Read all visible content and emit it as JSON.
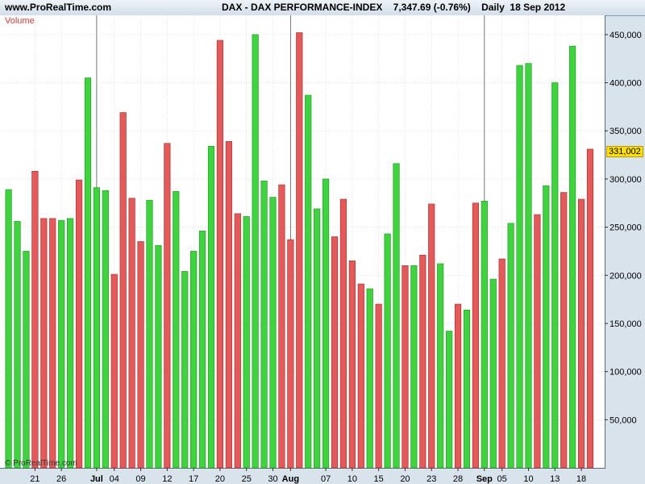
{
  "header": {
    "site": "www.ProRealTime.com",
    "title": "DAX - DAX PERFORMANCE-INDEX    7,347.69 (-0.76%)    Daily  18 Sep 2012"
  },
  "indicator_label": "Volume",
  "copyright": "© ProRealTime.com",
  "last_value_label": "331,002",
  "colors": {
    "up": "#3fd43f",
    "down": "#e45a5a",
    "up_edge": "#2a9a2a",
    "down_edge": "#a83232",
    "grid": "#c8d0da",
    "month_line": "#555555"
  },
  "chart_data": {
    "type": "bar",
    "title": "DAX - DAX PERFORMANCE-INDEX",
    "ylabel": "Volume",
    "ylim": [
      0,
      470000
    ],
    "yticks": [
      50000,
      100000,
      150000,
      200000,
      250000,
      300000,
      350000,
      400000,
      450000
    ],
    "ytick_labels": [
      "50,000",
      "100,000",
      "150,000",
      "200,000",
      "250,000",
      "300,000",
      "350,000",
      "400,000",
      "450,000"
    ],
    "grid": true,
    "bars": [
      {
        "value": 289000,
        "dir": "up"
      },
      {
        "value": 256000,
        "dir": "up"
      },
      {
        "value": 225000,
        "dir": "up"
      },
      {
        "value": 308000,
        "dir": "down"
      },
      {
        "value": 259000,
        "dir": "down"
      },
      {
        "value": 259000,
        "dir": "down"
      },
      {
        "value": 257000,
        "dir": "up"
      },
      {
        "value": 259000,
        "dir": "up"
      },
      {
        "value": 299000,
        "dir": "down"
      },
      {
        "value": 405000,
        "dir": "up"
      },
      {
        "value": 291000,
        "dir": "up"
      },
      {
        "value": 288000,
        "dir": "up"
      },
      {
        "value": 201000,
        "dir": "down"
      },
      {
        "value": 369000,
        "dir": "down"
      },
      {
        "value": 280000,
        "dir": "down"
      },
      {
        "value": 235000,
        "dir": "down"
      },
      {
        "value": 278000,
        "dir": "up"
      },
      {
        "value": 231000,
        "dir": "up"
      },
      {
        "value": 337000,
        "dir": "down"
      },
      {
        "value": 287000,
        "dir": "up"
      },
      {
        "value": 204000,
        "dir": "up"
      },
      {
        "value": 225000,
        "dir": "up"
      },
      {
        "value": 246000,
        "dir": "up"
      },
      {
        "value": 334000,
        "dir": "up"
      },
      {
        "value": 444000,
        "dir": "down"
      },
      {
        "value": 339000,
        "dir": "down"
      },
      {
        "value": 264000,
        "dir": "down"
      },
      {
        "value": 261000,
        "dir": "up"
      },
      {
        "value": 450000,
        "dir": "up"
      },
      {
        "value": 298000,
        "dir": "up"
      },
      {
        "value": 281000,
        "dir": "up"
      },
      {
        "value": 294000,
        "dir": "down"
      },
      {
        "value": 237000,
        "dir": "down"
      },
      {
        "value": 452000,
        "dir": "down"
      },
      {
        "value": 387000,
        "dir": "up"
      },
      {
        "value": 269000,
        "dir": "up"
      },
      {
        "value": 300000,
        "dir": "up"
      },
      {
        "value": 240000,
        "dir": "down"
      },
      {
        "value": 279000,
        "dir": "down"
      },
      {
        "value": 215000,
        "dir": "down"
      },
      {
        "value": 191000,
        "dir": "down"
      },
      {
        "value": 186000,
        "dir": "up"
      },
      {
        "value": 170000,
        "dir": "down"
      },
      {
        "value": 243000,
        "dir": "up"
      },
      {
        "value": 316000,
        "dir": "up"
      },
      {
        "value": 210000,
        "dir": "down"
      },
      {
        "value": 210000,
        "dir": "up"
      },
      {
        "value": 221000,
        "dir": "down"
      },
      {
        "value": 274000,
        "dir": "down"
      },
      {
        "value": 212000,
        "dir": "up"
      },
      {
        "value": 142000,
        "dir": "up"
      },
      {
        "value": 170000,
        "dir": "down"
      },
      {
        "value": 164000,
        "dir": "up"
      },
      {
        "value": 275000,
        "dir": "down"
      },
      {
        "value": 277000,
        "dir": "up"
      },
      {
        "value": 196000,
        "dir": "up"
      },
      {
        "value": 217000,
        "dir": "down"
      },
      {
        "value": 254000,
        "dir": "up"
      },
      {
        "value": 418000,
        "dir": "up"
      },
      {
        "value": 420000,
        "dir": "up"
      },
      {
        "value": 263000,
        "dir": "down"
      },
      {
        "value": 293000,
        "dir": "up"
      },
      {
        "value": 400000,
        "dir": "up"
      },
      {
        "value": 286000,
        "dir": "down"
      },
      {
        "value": 438000,
        "dir": "up"
      },
      {
        "value": 279000,
        "dir": "down"
      },
      {
        "value": 331002,
        "dir": "down"
      }
    ],
    "x_labels": [
      {
        "index": 3,
        "label": "21"
      },
      {
        "index": 6,
        "label": "26"
      },
      {
        "index": 10,
        "label": "Jul",
        "month": true
      },
      {
        "index": 12,
        "label": "04"
      },
      {
        "index": 15,
        "label": "09"
      },
      {
        "index": 18,
        "label": "12"
      },
      {
        "index": 21,
        "label": "17"
      },
      {
        "index": 24,
        "label": "20"
      },
      {
        "index": 27,
        "label": "25"
      },
      {
        "index": 30,
        "label": "30"
      },
      {
        "index": 32,
        "label": "Aug",
        "month": true
      },
      {
        "index": 36,
        "label": "07"
      },
      {
        "index": 39,
        "label": "10"
      },
      {
        "index": 42,
        "label": "15"
      },
      {
        "index": 45,
        "label": "20"
      },
      {
        "index": 48,
        "label": "23"
      },
      {
        "index": 51,
        "label": "28"
      },
      {
        "index": 54,
        "label": "Sep",
        "month": true
      },
      {
        "index": 56,
        "label": "05"
      },
      {
        "index": 59,
        "label": "10"
      },
      {
        "index": 62,
        "label": "13"
      },
      {
        "index": 65,
        "label": "18"
      }
    ]
  }
}
